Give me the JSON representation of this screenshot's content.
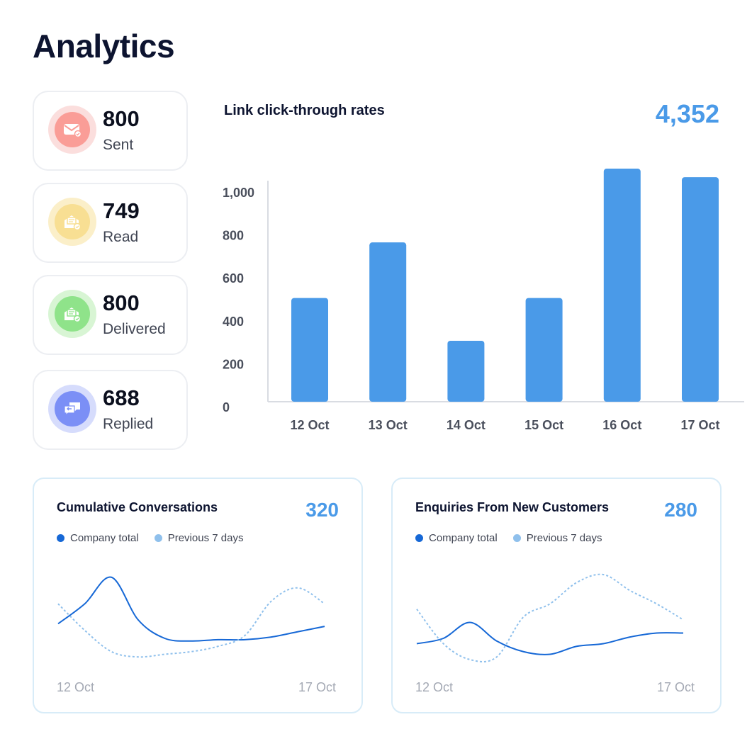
{
  "page": {
    "title": "Analytics"
  },
  "stats": [
    {
      "value": "800",
      "label": "Sent",
      "icon": "envelope-icon",
      "ring": "#fbdedd",
      "fill": "#fa9d97"
    },
    {
      "value": "749",
      "label": "Read",
      "icon": "open-envelope-icon",
      "ring": "#fbefc9",
      "fill": "#f8df93"
    },
    {
      "value": "800",
      "label": "Delivered",
      "icon": "delivered-envelope-icon",
      "ring": "#d8f5d4",
      "fill": "#8fe38a"
    },
    {
      "value": "688",
      "label": "Replied",
      "icon": "reply-chat-icon",
      "ring": "#d6dcfc",
      "fill": "#7b8ff6"
    }
  ],
  "link_chart": {
    "title": "Link click-through rates",
    "total": "4,352"
  },
  "conversations": {
    "title": "Cumulative Conversations",
    "total": "320",
    "legend": [
      "Company total",
      "Previous 7 days"
    ],
    "x_start": "12 Oct",
    "x_end": "17 Oct"
  },
  "enquiries": {
    "title": "Enquiries From New Customers",
    "total": "280",
    "legend": [
      "Company total",
      "Previous 7 days"
    ],
    "x_start": "12 Oct",
    "x_end": "17 Oct"
  },
  "colors": {
    "bar": "#4a9ae8",
    "company_line": "#1668d6",
    "previous_line": "#8fc0ec",
    "accent_text": "#4a9ae8"
  },
  "chart_data": [
    {
      "type": "bar",
      "title": "Link click-through rates",
      "categories": [
        "12 Oct",
        "13 Oct",
        "14 Oct",
        "15 Oct",
        "16 Oct",
        "17 Oct"
      ],
      "values": [
        485,
        745,
        285,
        485,
        1090,
        1050
      ],
      "yticks": [
        "0",
        "200",
        "400",
        "600",
        "800",
        "1,000"
      ],
      "ylim": [
        0,
        1100
      ],
      "grid": false,
      "legend": "none"
    },
    {
      "type": "line",
      "title": "Cumulative Conversations",
      "x": [
        0,
        0.5,
        1,
        1.5,
        2,
        2.5,
        3,
        3.5,
        4,
        4.5,
        5
      ],
      "series": [
        {
          "name": "Company total",
          "values": [
            55,
            70,
            90,
            58,
            44,
            42,
            43,
            43,
            45,
            49,
            53
          ]
        },
        {
          "name": "Previous 7 days",
          "values": [
            70,
            50,
            34,
            30,
            32,
            34,
            38,
            46,
            72,
            82,
            70
          ]
        }
      ],
      "ylim": [
        20,
        100
      ],
      "x_labels": [
        "12 Oct",
        "17 Oct"
      ],
      "legend": "top-left"
    },
    {
      "type": "line",
      "title": "Enquiries From New Customers",
      "x": [
        0,
        0.5,
        1,
        1.5,
        2,
        2.5,
        3,
        3.5,
        4,
        4.5,
        5
      ],
      "series": [
        {
          "name": "Company total",
          "values": [
            40,
            44,
            56,
            42,
            34,
            32,
            38,
            40,
            45,
            48,
            48
          ]
        },
        {
          "name": "Previous 7 days",
          "values": [
            66,
            40,
            28,
            30,
            60,
            70,
            86,
            92,
            80,
            70,
            58
          ]
        }
      ],
      "ylim": [
        20,
        100
      ],
      "x_labels": [
        "12 Oct",
        "17 Oct"
      ],
      "legend": "top-left"
    }
  ]
}
